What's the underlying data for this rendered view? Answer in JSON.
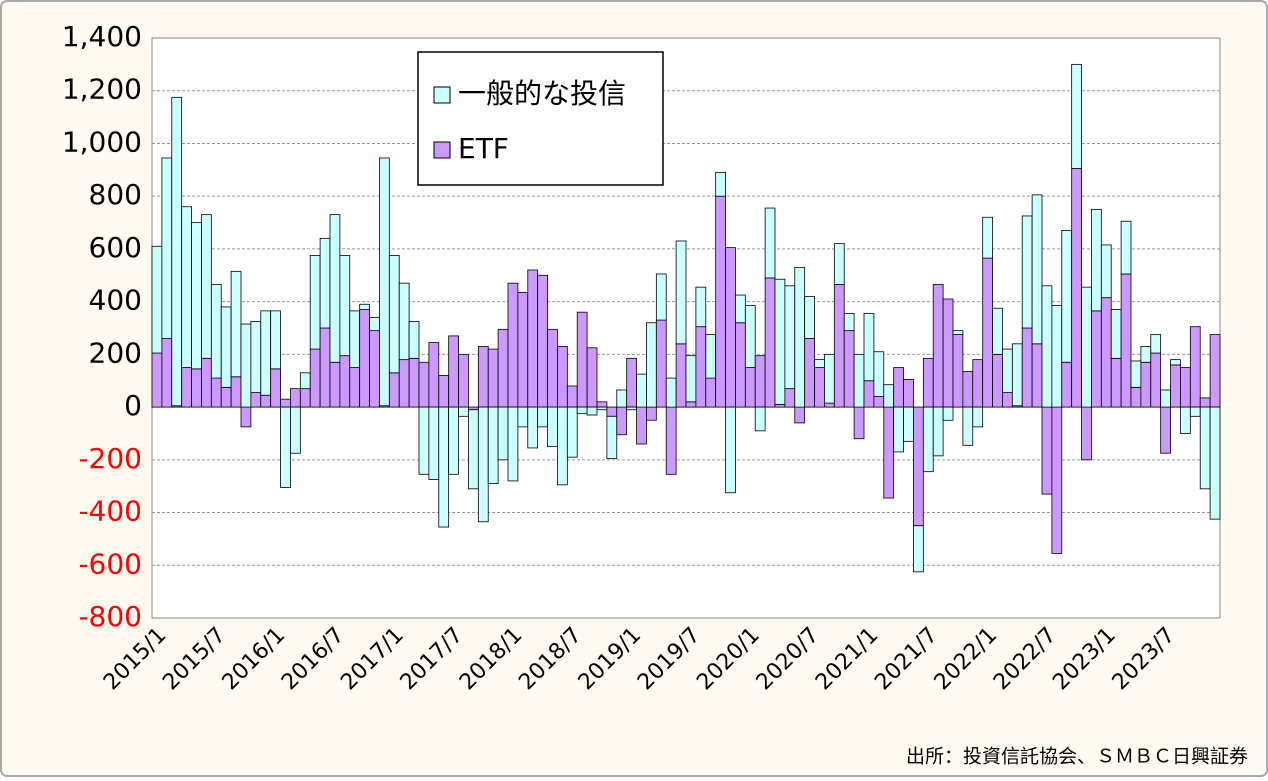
{
  "chart_data": {
    "type": "bar",
    "stacked": true,
    "categories": [
      "2015/1",
      null,
      null,
      null,
      null,
      null,
      "2015/7",
      null,
      null,
      null,
      null,
      null,
      "2016/1",
      null,
      null,
      null,
      null,
      null,
      "2016/7",
      null,
      null,
      null,
      null,
      null,
      "2017/1",
      null,
      null,
      null,
      null,
      null,
      "2017/7",
      null,
      null,
      null,
      null,
      null,
      "2018/1",
      null,
      null,
      null,
      null,
      null,
      "2018/7",
      null,
      null,
      null,
      null,
      null,
      "2019/1",
      null,
      null,
      null,
      null,
      null,
      "2019/7",
      null,
      null,
      null,
      null,
      null,
      "2020/1",
      null,
      null,
      null,
      null,
      null,
      "2020/7",
      null,
      null,
      null,
      null,
      null,
      "2021/1",
      null,
      null,
      null,
      null,
      null,
      "2021/7",
      null,
      null,
      null,
      null,
      null,
      "2022/1",
      null,
      null,
      null,
      null,
      null,
      "2022/7",
      null,
      null,
      null,
      null,
      null,
      "2023/1",
      null,
      null,
      null,
      null,
      null,
      "2023/7",
      null,
      null,
      null,
      null,
      null
    ],
    "series": [
      {
        "name": "一般的な投信",
        "color": "#ccffff",
        "values": [
          405,
          685,
          1170,
          610,
          555,
          545,
          355,
          305,
          400,
          315,
          270,
          320,
          220,
          -305,
          -175,
          60,
          355,
          340,
          560,
          380,
          215,
          20,
          50,
          940,
          445,
          290,
          140,
          -255,
          -275,
          -455,
          -255,
          -35,
          -300,
          -435,
          -290,
          -200,
          -280,
          -75,
          -155,
          -75,
          -150,
          -295,
          -190,
          -25,
          -30,
          -10,
          -160,
          65,
          -10,
          125,
          320,
          175,
          110,
          390,
          175,
          150,
          165,
          90,
          -325,
          105,
          235,
          -90,
          265,
          475,
          390,
          530,
          160,
          30,
          185,
          155,
          65,
          200,
          255,
          170,
          85,
          -170,
          -130,
          -175,
          -245,
          -185,
          -50,
          15,
          -145,
          -75,
          155,
          175,
          165,
          235,
          425,
          565,
          460,
          385,
          500,
          395,
          455,
          385,
          200,
          185,
          200,
          100,
          60,
          70,
          65,
          20,
          -100,
          -35,
          -310,
          -425
        ]
      },
      {
        "name": "ETF",
        "color": "#cc99ff",
        "values": [
          205,
          260,
          5,
          150,
          145,
          185,
          110,
          75,
          115,
          -75,
          55,
          45,
          145,
          30,
          70,
          70,
          220,
          300,
          170,
          195,
          150,
          370,
          290,
          5,
          130,
          180,
          185,
          170,
          245,
          120,
          270,
          200,
          -10,
          230,
          220,
          295,
          470,
          435,
          520,
          500,
          295,
          230,
          80,
          360,
          225,
          20,
          -35,
          -105,
          185,
          -140,
          -50,
          330,
          -255,
          240,
          20,
          305,
          110,
          800,
          605,
          320,
          150,
          195,
          490,
          10,
          70,
          -60,
          260,
          150,
          15,
          465,
          290,
          -120,
          100,
          40,
          -345,
          150,
          105,
          -450,
          185,
          465,
          410,
          275,
          135,
          180,
          565,
          200,
          55,
          5,
          300,
          240,
          -330,
          -555,
          170,
          905,
          -200,
          365,
          415,
          185,
          505,
          75,
          170,
          205,
          -175,
          160,
          150,
          305,
          35,
          275
        ]
      }
    ],
    "ylim": [
      -800,
      1400
    ],
    "yticks": [
      {
        "value": -800,
        "label": "-800"
      },
      {
        "value": -600,
        "label": "-600"
      },
      {
        "value": -400,
        "label": "-400"
      },
      {
        "value": -200,
        "label": "-200"
      },
      0,
      200,
      400,
      600,
      800,
      {
        "value": 1000,
        "label": "1,000"
      },
      {
        "value": 1200,
        "label": "1,200"
      },
      {
        "value": 1400,
        "label": "1,400"
      }
    ],
    "grid": true,
    "negative_tick_color": "#ff0000",
    "legend": "top-center",
    "source": "出所：投資信託協会、ＳＭＢＣ日興証券"
  }
}
